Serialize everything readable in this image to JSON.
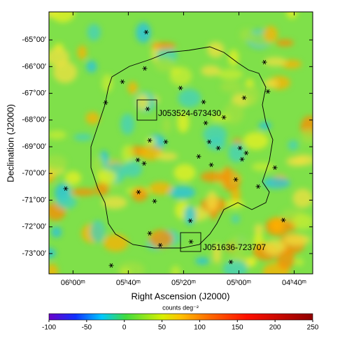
{
  "chart_data": {
    "type": "heatmap",
    "xlabel": "Right Ascension (J2000)",
    "ylabel": "Declination (J2000)",
    "xlim": [
      6.145,
      4.555
    ],
    "ylim": [
      -73.76,
      -63.95
    ],
    "xticks": [
      {
        "value": 6.0,
        "label": "06ʰ00ᵐ"
      },
      {
        "value": 5.6667,
        "label": "05ʰ40ᵐ"
      },
      {
        "value": 5.3333,
        "label": "05ʰ20ᵐ"
      },
      {
        "value": 5.0,
        "label": "05ʰ00ᵐ"
      },
      {
        "value": 4.6667,
        "label": "04ʰ40ᵐ"
      }
    ],
    "yticks": [
      {
        "value": -65,
        "label": "-65°00′"
      },
      {
        "value": -66,
        "label": "-66°00′"
      },
      {
        "value": -67,
        "label": "-67°00′"
      },
      {
        "value": -68,
        "label": "-68°00′"
      },
      {
        "value": -69,
        "label": "-69°00′"
      },
      {
        "value": -70,
        "label": "-70°00′"
      },
      {
        "value": -71,
        "label": "-71°00′"
      },
      {
        "value": -72,
        "label": "-72°00′"
      },
      {
        "value": -73,
        "label": "-73°00′"
      }
    ],
    "annotations": [
      "J053524-673430",
      "J051636-723707"
    ],
    "colorbar": {
      "label": "counts deg⁻²",
      "lim": [
        -100,
        250
      ],
      "ticks": [
        -100,
        -50,
        0,
        50,
        100,
        150,
        200,
        250
      ]
    }
  }
}
